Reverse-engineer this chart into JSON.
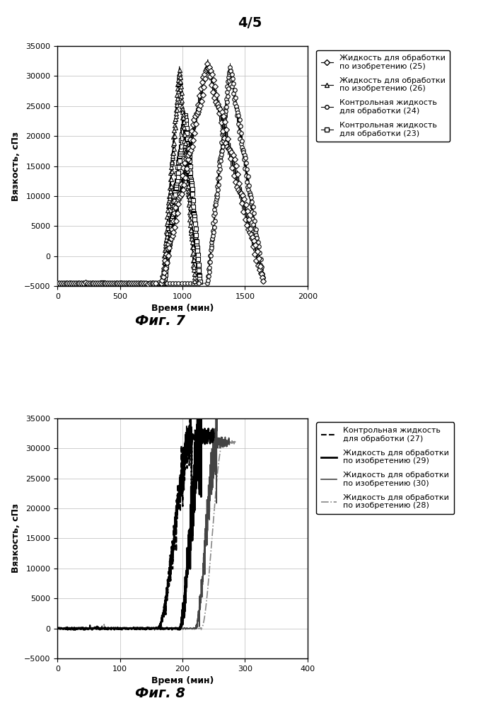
{
  "page_label": "4/5",
  "fig7": {
    "caption": "Фиг. 7",
    "xlabel": "Время (мин)",
    "ylabel": "Вязкость, сПз",
    "xlim": [
      0,
      2000
    ],
    "ylim": [
      -5000,
      35000
    ],
    "xticks": [
      0,
      500,
      1000,
      1500,
      2000
    ],
    "yticks": [
      -5000,
      0,
      5000,
      10000,
      15000,
      20000,
      25000,
      30000,
      35000
    ],
    "series": [
      {
        "label": "Жидкость для обработки\nпо изобретению (25)",
        "color": "#000000",
        "marker": "D",
        "markersize": 4,
        "flat_val": -4500,
        "flat_end": 800,
        "rise_start": 830,
        "peak": 1200,
        "peak_visc": 32000,
        "fall_end": 1650,
        "fall_visc": -4500,
        "dense_osc": true,
        "osc_amp": 3000
      },
      {
        "label": "Жидкость для обработки\nпо изобретению (26)",
        "color": "#000000",
        "marker": "^",
        "markersize": 4,
        "flat_val": -4500,
        "flat_end": 810,
        "rise_start": 840,
        "peak": 975,
        "peak_visc": 31000,
        "fall_end": 1100,
        "fall_visc": -4500,
        "dense_osc": true,
        "osc_amp": 2500
      },
      {
        "label": "Контрольная жидкость\nдля обработки (24)",
        "color": "#000000",
        "marker": "o",
        "markersize": 4,
        "flat_val": -4500,
        "flat_end": 1150,
        "rise_start": 1200,
        "peak": 1380,
        "peak_visc": 31500,
        "fall_end": 1650,
        "fall_visc": -4500,
        "dense_osc": true,
        "osc_amp": 2500
      },
      {
        "label": "Контрольная жидкость\nдля обработки (23)",
        "color": "#000000",
        "marker": "s",
        "markersize": 4,
        "flat_val": -4500,
        "flat_end": 820,
        "rise_start": 850,
        "peak": 1020,
        "peak_visc": 23500,
        "fall_end": 1140,
        "fall_visc": -4500,
        "dense_osc": true,
        "osc_amp": 2000
      }
    ],
    "legend_labels": [
      "Жидкость для обработки\nпо изобретению (25)",
      "Жидкость для обработки\nпо изобретению (26)",
      "Контрольная жидкость\nдля обработки (24)",
      "Контрольная жидкость\nдля обработки (23)"
    ],
    "legend_markers": [
      "D",
      "^",
      "o",
      "s"
    ]
  },
  "fig8": {
    "caption": "Фиг. 8",
    "xlabel": "Время (мин)",
    "ylabel": "Вязкость, сПз",
    "xlim": [
      0,
      400
    ],
    "ylim": [
      -5000,
      35000
    ],
    "xticks": [
      0,
      100,
      200,
      300,
      400
    ],
    "yticks": [
      -5000,
      0,
      5000,
      10000,
      15000,
      20000,
      25000,
      30000,
      35000
    ],
    "series": [
      {
        "label": "Контрольная жидкость\nдля обработки (27)",
        "color": "#000000",
        "linestyle": "--",
        "linewidth": 1.5,
        "rise_start": 160,
        "peak_x": 215,
        "peak_visc": 32000,
        "noisy": true,
        "seed": 10,
        "noise_amp": 1500
      },
      {
        "label": "Жидкость для обработки\nпо изобретению (29)",
        "color": "#000000",
        "linestyle": "-",
        "linewidth": 2.0,
        "rise_start": 195,
        "peak_x": 230,
        "peak_visc": 32000,
        "noisy": true,
        "seed": 20,
        "noise_amp": 2000
      },
      {
        "label": "Жидкость для обработки\nпо изобретению (30)",
        "color": "#444444",
        "linestyle": "-",
        "linewidth": 1.2,
        "rise_start": 220,
        "peak_x": 255,
        "peak_visc": 31000,
        "noisy": true,
        "seed": 30,
        "noise_amp": 1500
      },
      {
        "label": "Жидкость для обработки\nпо изобретению (28)",
        "color": "#888888",
        "linestyle": "-.",
        "linewidth": 1.2,
        "rise_start": 230,
        "peak_x": 265,
        "peak_visc": 31000,
        "noisy": false,
        "seed": 40,
        "noise_amp": 0
      }
    ]
  },
  "bg": "#ffffff",
  "lfs": 9,
  "tfs": 8,
  "legfs": 8,
  "capfs": 14
}
